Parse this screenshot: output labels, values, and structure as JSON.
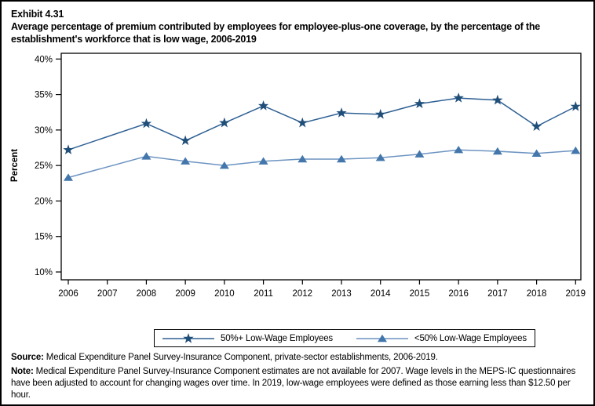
{
  "title": {
    "exhibit": "Exhibit 4.31",
    "text": "Average percentage of premium contributed by employees for employee-plus-one coverage, by the percentage of the establishment's workforce that is low wage, 2006-2019"
  },
  "chart_data": {
    "type": "line",
    "x": [
      2006,
      2007,
      2008,
      2009,
      2010,
      2011,
      2012,
      2013,
      2014,
      2015,
      2016,
      2017,
      2018,
      2019
    ],
    "series": [
      {
        "name": "50%+ Low-Wage Employees",
        "marker": "star",
        "color": "#1F4E79",
        "line_color": "#2E6093",
        "values": [
          27.2,
          null,
          30.9,
          28.5,
          31.0,
          33.4,
          31.0,
          32.4,
          32.2,
          33.7,
          34.5,
          34.2,
          30.5,
          33.3
        ]
      },
      {
        "name": "<50% Low-Wage Employees",
        "marker": "triangle",
        "color": "#4377AC",
        "line_color": "#6D94C1",
        "values": [
          23.3,
          null,
          26.3,
          25.6,
          25.0,
          25.6,
          25.9,
          25.9,
          26.1,
          26.6,
          27.2,
          27.0,
          26.7,
          27.1
        ]
      }
    ],
    "title": "Average percentage of premium contributed by employees for employee-plus-one coverage, by the percentage of the establishment's workforce that is low wage, 2006-2019",
    "xlabel": "",
    "ylabel": "Percent",
    "ylim": [
      10,
      40
    ],
    "ytick_step": 5,
    "ytick_suffix": "%",
    "grid": false,
    "legend_position": "bottom",
    "note": "No estimates for 2007; line connects 2006 to 2008 directly"
  },
  "footer": {
    "source_label": "Source:",
    "source_text": "Medical Expenditure Panel Survey-Insurance Component, private-sector establishments, 2006-2019.",
    "note_label": "Note:",
    "note_text": "Medical Expenditure Panel Survey-Insurance Component estimates are not available for 2007. Wage levels in the MEPS-IC questionnaires have been adjusted to account for changing wages over time.  In 2019, low-wage employees were defined as those earning less than $12.50 per hour."
  }
}
